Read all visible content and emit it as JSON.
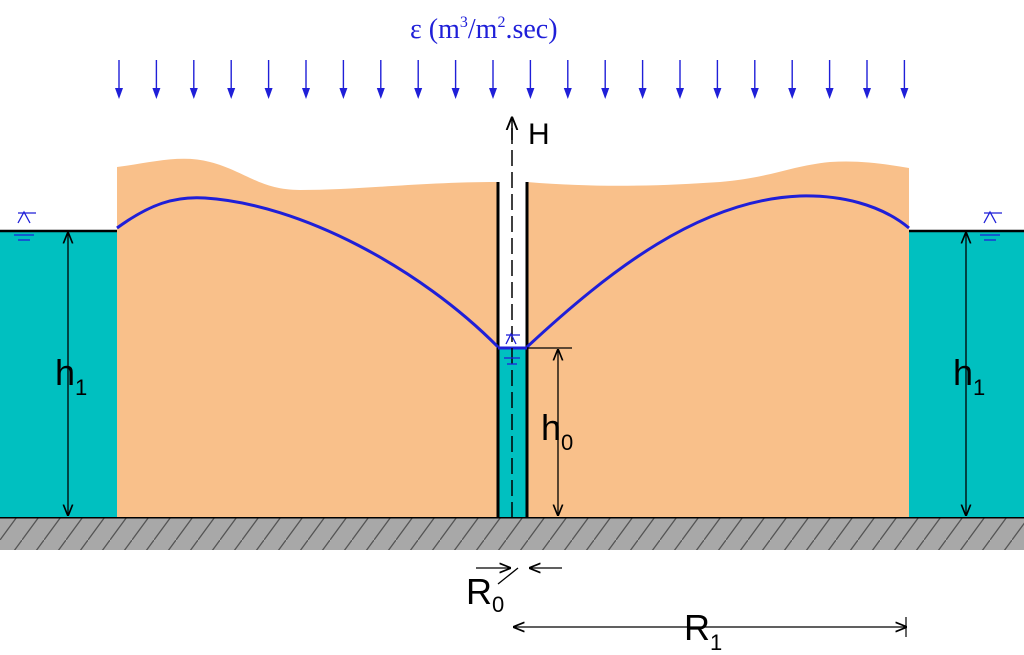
{
  "rain_label": {
    "symbol": "ε",
    "open": " (m",
    "sup1": "3",
    "mid": "/m",
    "sup2": "2",
    "tail": ".sec)"
  },
  "labels": {
    "H": "H",
    "h1_left": {
      "base": "h",
      "sub": "1"
    },
    "h1_right": {
      "base": "h",
      "sub": "1"
    },
    "h0": {
      "base": "h",
      "sub": "0"
    },
    "R0": {
      "base": "R",
      "sub": "0"
    },
    "R1": {
      "base": "R",
      "sub": "1"
    }
  },
  "colors": {
    "soil": "#f9c08a",
    "water": "#00c0c0",
    "phreatic": "#1f1fd8",
    "rain": "#1f1fd8",
    "ground": "#a8a8a8",
    "hatch": "#555555",
    "outline": "#000000"
  }
}
